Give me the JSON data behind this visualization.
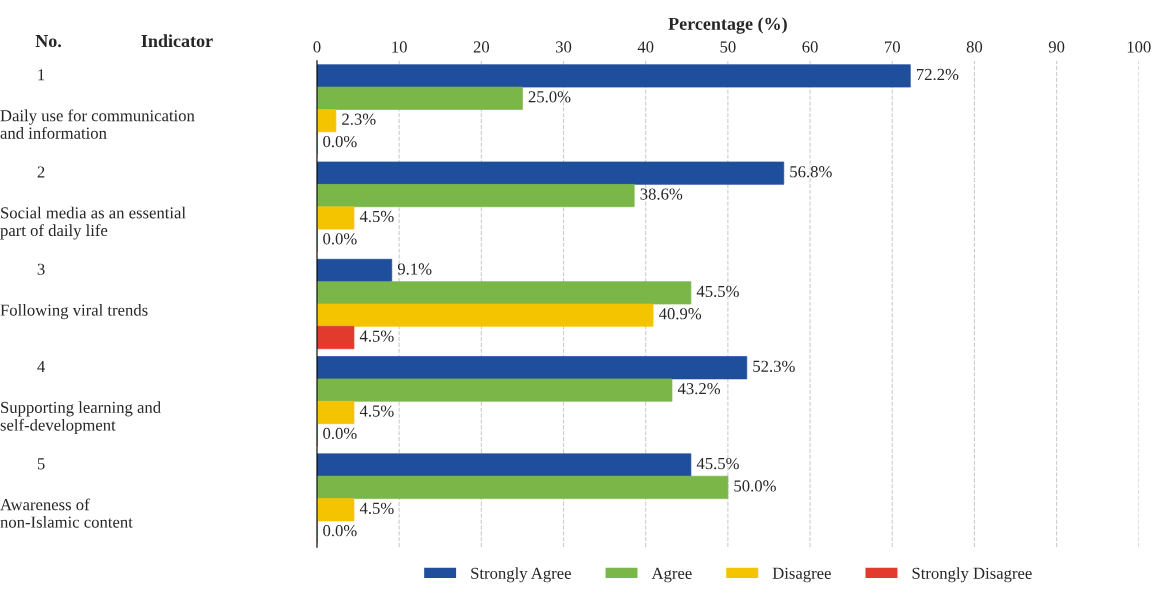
{
  "chart_data": {
    "type": "bar",
    "orientation": "horizontal",
    "xlabel": "Percentage (%)",
    "categories": [
      "Daily use for communication\nand information",
      "Social media as an essential\npart of daily life",
      "Following viral trends",
      "Supporting learning and\nself-development",
      "Awareness of\nnon-Islamic content"
    ],
    "series": [
      {
        "name": "Strongly Agree",
        "color": "#1f4e9c",
        "values": [
          72.2,
          56.8,
          9.1,
          52.3,
          45.5
        ],
        "value_labels": [
          "72.2%",
          "56.8%",
          "9.1%",
          "52.3%",
          "45.5%"
        ]
      },
      {
        "name": "Agree",
        "color": "#7ab648",
        "values": [
          25.0,
          38.6,
          45.5,
          43.2,
          50.0
        ],
        "value_labels": [
          "25.0%",
          "38.6%",
          "45.5%",
          "43.2%",
          "50.0%"
        ]
      },
      {
        "name": "Disagree",
        "color": "#f5c400",
        "values": [
          2.3,
          4.5,
          40.9,
          4.5,
          4.5
        ],
        "value_labels": [
          "2.3%",
          "4.5%",
          "40.9%",
          "4.5%",
          "4.5%"
        ]
      },
      {
        "name": "Strongly Disagree",
        "color": "#e23b2e",
        "values": [
          0.0,
          0.0,
          4.5,
          0.0,
          0.0
        ],
        "value_labels": [
          "0.0%",
          "0.0%",
          "4.5%",
          "0.0%",
          "0.0%"
        ]
      }
    ],
    "xlim": [
      0,
      100
    ],
    "xticks": [
      0,
      10,
      20,
      30,
      40,
      50,
      60,
      70,
      80,
      90,
      100
    ],
    "grid": "x",
    "legend": "bottom",
    "annotations": [
      "No.",
      "Indicator",
      "1",
      "2",
      "3",
      "4",
      "5"
    ]
  }
}
